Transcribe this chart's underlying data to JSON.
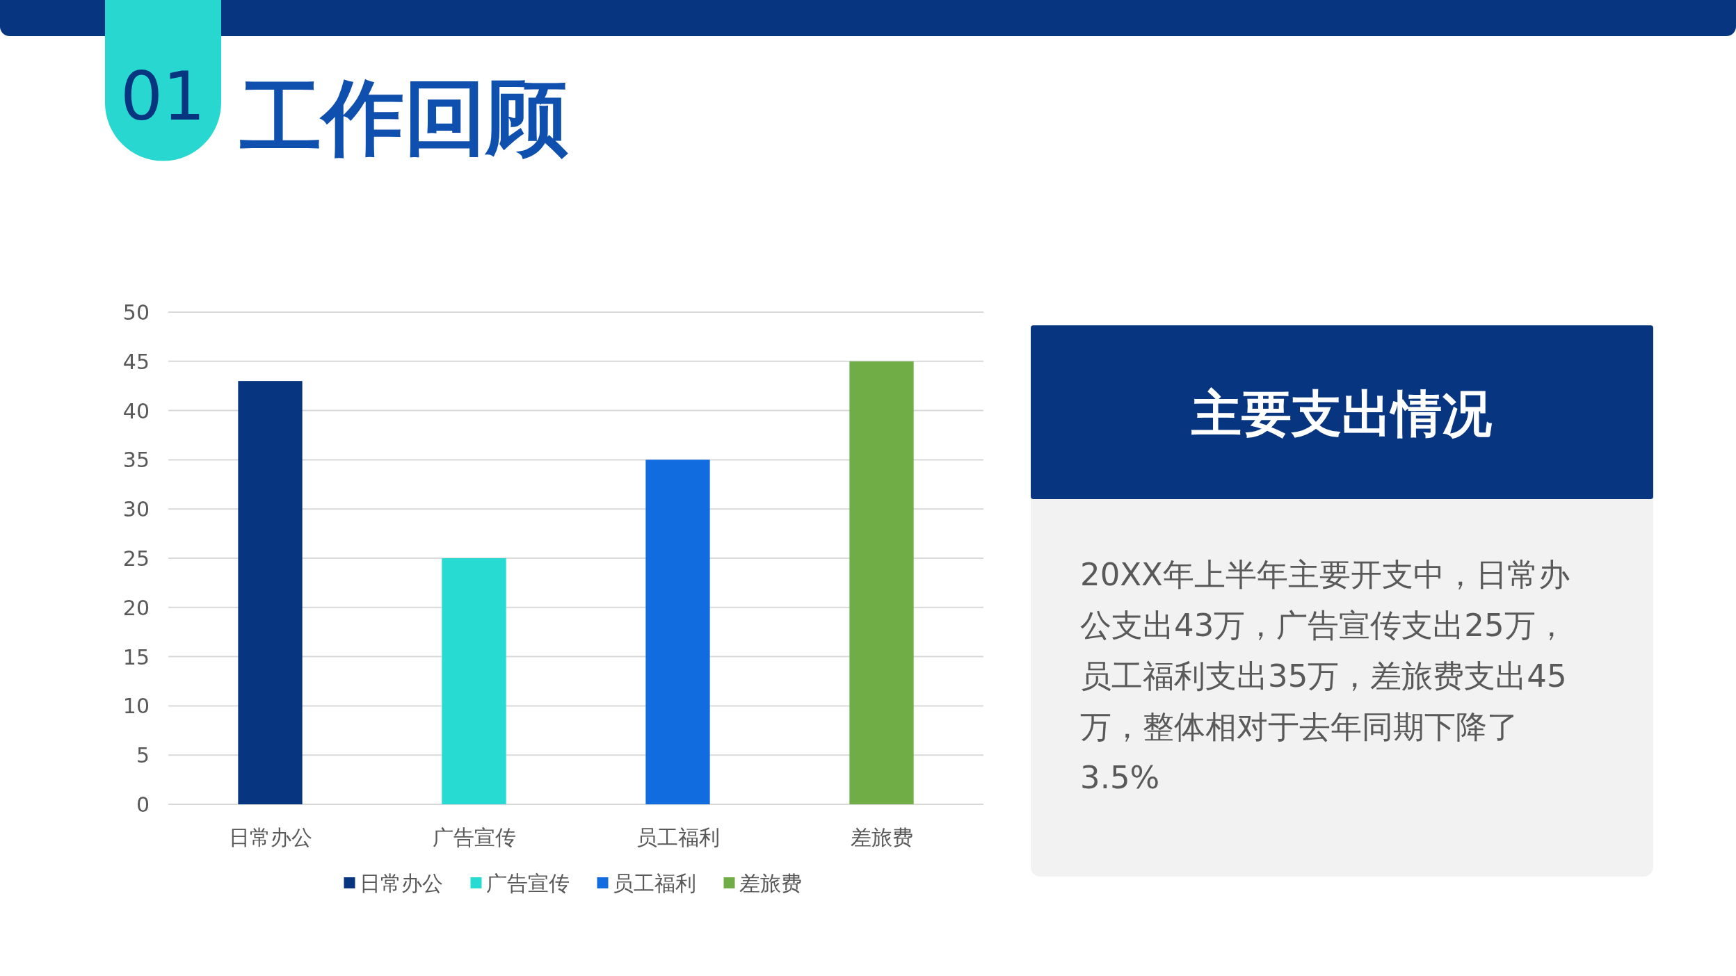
{
  "chart_data": {
    "type": "bar",
    "title": "工作回顾",
    "categories": [
      "日常办公",
      "广告宣传",
      "员工福利",
      "差旅费"
    ],
    "series": [
      {
        "name": "日常办公",
        "color": "#07357f",
        "values": [
          43,
          null,
          null,
          null
        ]
      },
      {
        "name": "广告宣传",
        "color": "#27dbd3",
        "values": [
          null,
          25,
          null,
          null
        ]
      },
      {
        "name": "员工福利",
        "color": "#116ddf",
        "values": [
          null,
          null,
          35,
          null
        ]
      },
      {
        "name": "差旅费",
        "color": "#70ad47",
        "values": [
          null,
          null,
          null,
          45
        ]
      }
    ],
    "ylim": [
      0,
      50
    ],
    "yticks": [
      0,
      5,
      10,
      15,
      20,
      25,
      30,
      35,
      40,
      45,
      50
    ],
    "grid": "y",
    "legend": "bottom",
    "annotations": [
      "01",
      "主要支出情况",
      "20XX年上半年主要开支中，日常办公支出43万，广告宣传支出25万，员工福利支出35万，差旅费支出45万，整体相对于去年同期下降了3.5%"
    ]
  }
}
